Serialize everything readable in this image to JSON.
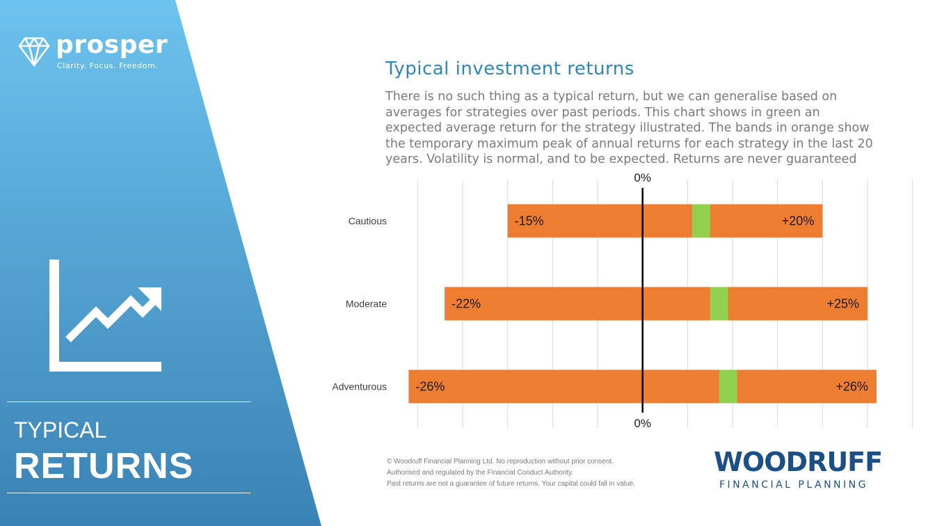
{
  "brand": {
    "name": "prosper",
    "tagline": "Clarity. Focus. Freedom."
  },
  "section": {
    "title_line1": "TYPICAL",
    "title_line2": "RETURNS"
  },
  "heading": "Typical investment returns",
  "intro": "There is no such thing as a typical return, but we can generalise based on averages for strategies over past periods. This chart shows in green an expected average return for the strategy illustrated. The bands in orange show the temporary maximum peak of annual returns for each strategy in the last 20 years. Volatility is normal, and to be expected. Returns are never guaranteed",
  "footer": {
    "line1": "© Woodruff Financial Planning Ltd. No reproduction without prior consent.",
    "line2": "Authorised and regulated by the Financial Conduct Authority.",
    "line3": "Past returns are not a guarantee of future returns. Your capital could fall in value."
  },
  "company": {
    "name": "WOODRUFF",
    "subtitle": "FINANCIAL PLANNING"
  },
  "colors": {
    "panel_top": "#6cc3ee",
    "panel_bottom": "#3a82b4",
    "orange": "#ed7d31",
    "green": "#92d050",
    "heading": "#2e86b8"
  },
  "chart_data": {
    "type": "bar",
    "orientation": "horizontal",
    "categories": [
      "Cautious",
      "Moderate",
      "Adventurous"
    ],
    "series": [
      {
        "name": "range",
        "values": [
          [
            -15,
            20
          ],
          [
            -22,
            25
          ],
          [
            -26,
            26
          ]
        ]
      },
      {
        "name": "average",
        "values": [
          [
            5.5,
            7.5
          ],
          [
            7.5,
            9.5
          ],
          [
            8.5,
            10.5
          ]
        ]
      }
    ],
    "low_labels": [
      "-15%",
      "-22%",
      "-26%"
    ],
    "high_labels": [
      "+20%",
      "+25%",
      "+26%"
    ],
    "zero_label": "0%",
    "xlim": [
      -27.5,
      32.5
    ],
    "grid": true
  }
}
